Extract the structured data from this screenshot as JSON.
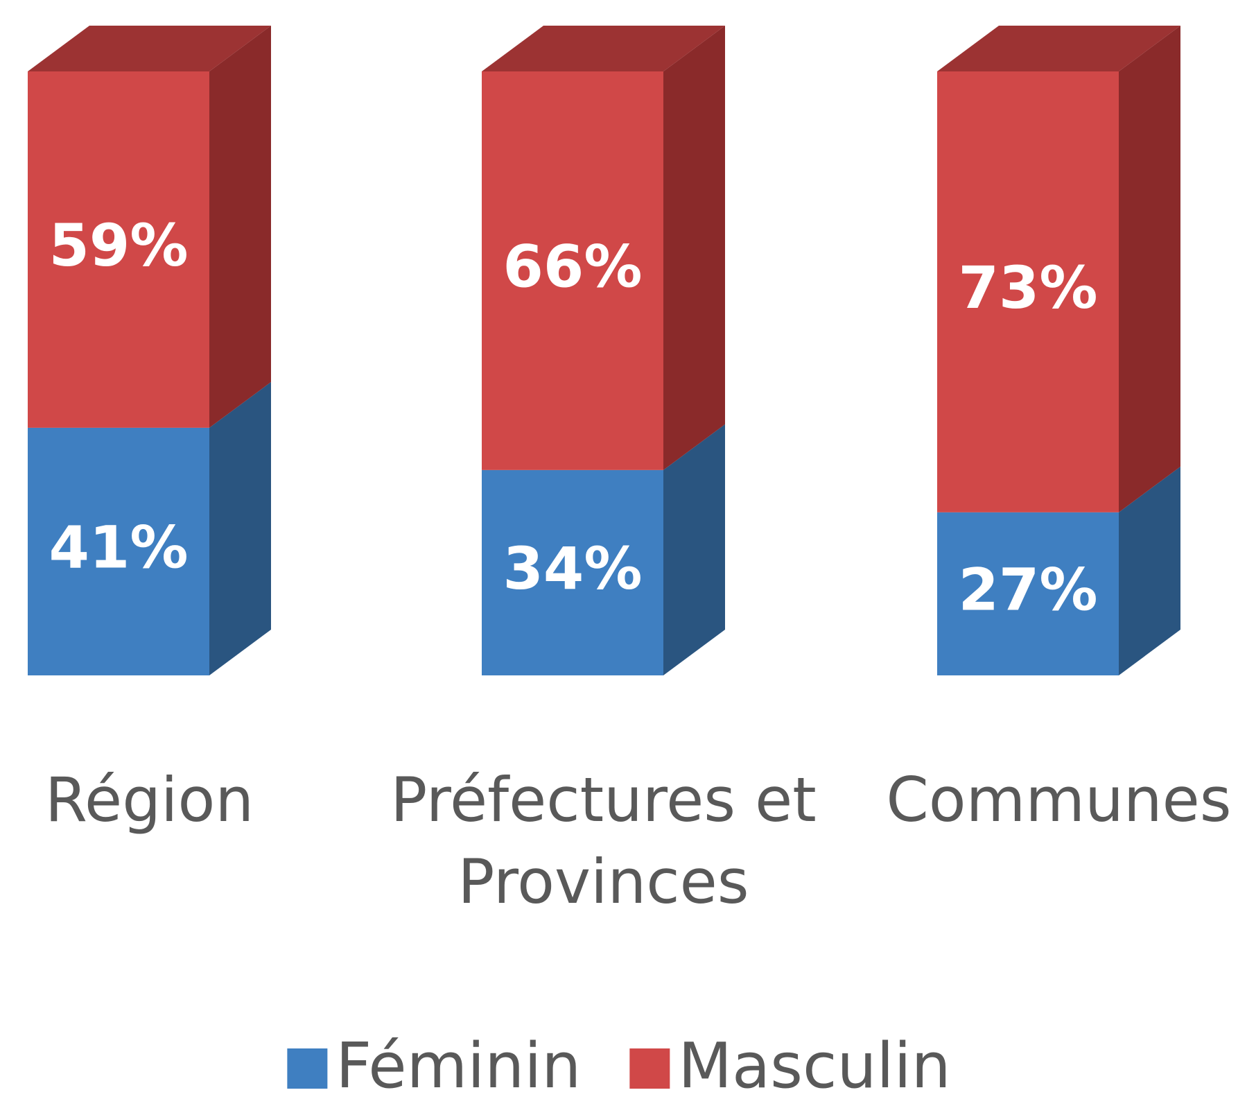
{
  "chart_data": {
    "type": "bar3d_stacked",
    "categories": [
      "Région",
      "Préfectures et Provinces",
      "Communes"
    ],
    "series": [
      {
        "name": "Féminin",
        "color": "#3f7fc1",
        "side_color": "#2a5580",
        "top_color": "#35689c",
        "values": [
          41,
          34,
          27
        ],
        "value_labels": [
          "41%",
          "34%",
          "27%"
        ]
      },
      {
        "name": "Masculin",
        "color": "#d04848",
        "side_color": "#8a2a2a",
        "top_color": "#9c3333",
        "values": [
          59,
          66,
          73
        ],
        "value_labels": [
          "59%",
          "66%",
          "73%"
        ]
      }
    ],
    "ylim": [
      0,
      100
    ],
    "legend": "bottom"
  }
}
